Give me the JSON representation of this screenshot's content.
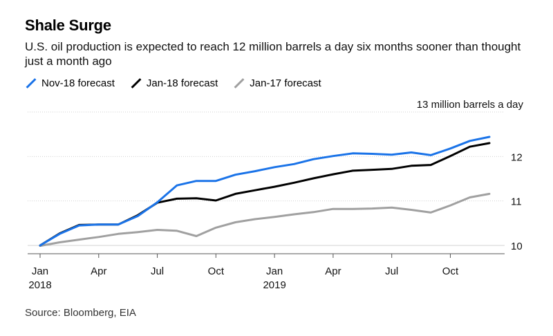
{
  "header": {
    "title": "Shale Surge",
    "subtitle": "U.S. oil production is expected to reach 12 million barrels a day six months sooner than thought just a month ago"
  },
  "footer": {
    "source": "Source: Bloomberg, EIA"
  },
  "chart_data": {
    "type": "line",
    "title": "Shale Surge",
    "ylabel": "13 million barrels a day",
    "ylim": [
      10,
      13
    ],
    "yticks": [
      10,
      11,
      12,
      13
    ],
    "ytick_labels": [
      "10",
      "11",
      "12",
      "13 million barrels a day"
    ],
    "x_months_index_start": "Jan 2018",
    "xticks": [
      {
        "m": 0,
        "label": "Jan",
        "year": "2018"
      },
      {
        "m": 3,
        "label": "Apr",
        "year": ""
      },
      {
        "m": 6,
        "label": "Jul",
        "year": ""
      },
      {
        "m": 9,
        "label": "Oct",
        "year": ""
      },
      {
        "m": 12,
        "label": "Jan",
        "year": "2019"
      },
      {
        "m": 15,
        "label": "Apr",
        "year": ""
      },
      {
        "m": 18,
        "label": "Jul",
        "year": ""
      },
      {
        "m": 21,
        "label": "Oct",
        "year": ""
      }
    ],
    "x": [
      0,
      1,
      2,
      3,
      4,
      5,
      6,
      7,
      8,
      9,
      10,
      11,
      12,
      13,
      14,
      15,
      16,
      17,
      18,
      19,
      20,
      21,
      22,
      23
    ],
    "series": [
      {
        "name": "Jan-17 forecast",
        "color": "#a0a0a0",
        "values": [
          9.99,
          10.07,
          10.13,
          10.19,
          10.26,
          10.3,
          10.35,
          10.33,
          10.21,
          10.4,
          10.52,
          10.59,
          10.64,
          10.7,
          10.75,
          10.82,
          10.82,
          10.83,
          10.85,
          10.8,
          10.74,
          10.9,
          11.08,
          11.16
        ]
      },
      {
        "name": "Jan-18 forecast",
        "color": "#000000",
        "values": [
          10.0,
          10.27,
          10.46,
          10.47,
          10.47,
          10.68,
          10.96,
          11.05,
          11.06,
          11.01,
          11.16,
          11.24,
          11.32,
          11.41,
          11.51,
          11.6,
          11.68,
          11.7,
          11.72,
          11.79,
          11.81,
          12.01,
          12.22,
          12.3
        ]
      },
      {
        "name": "Nov-18 forecast",
        "color": "#1a73e8",
        "values": [
          10.0,
          10.26,
          10.45,
          10.47,
          10.47,
          10.66,
          10.97,
          11.35,
          11.45,
          11.45,
          11.59,
          11.67,
          11.76,
          11.83,
          11.94,
          12.01,
          12.07,
          12.06,
          12.04,
          12.09,
          12.03,
          12.18,
          12.35,
          12.44
        ]
      }
    ],
    "legend": [
      "Nov-18 forecast",
      "Jan-18 forecast",
      "Jan-17 forecast"
    ]
  }
}
